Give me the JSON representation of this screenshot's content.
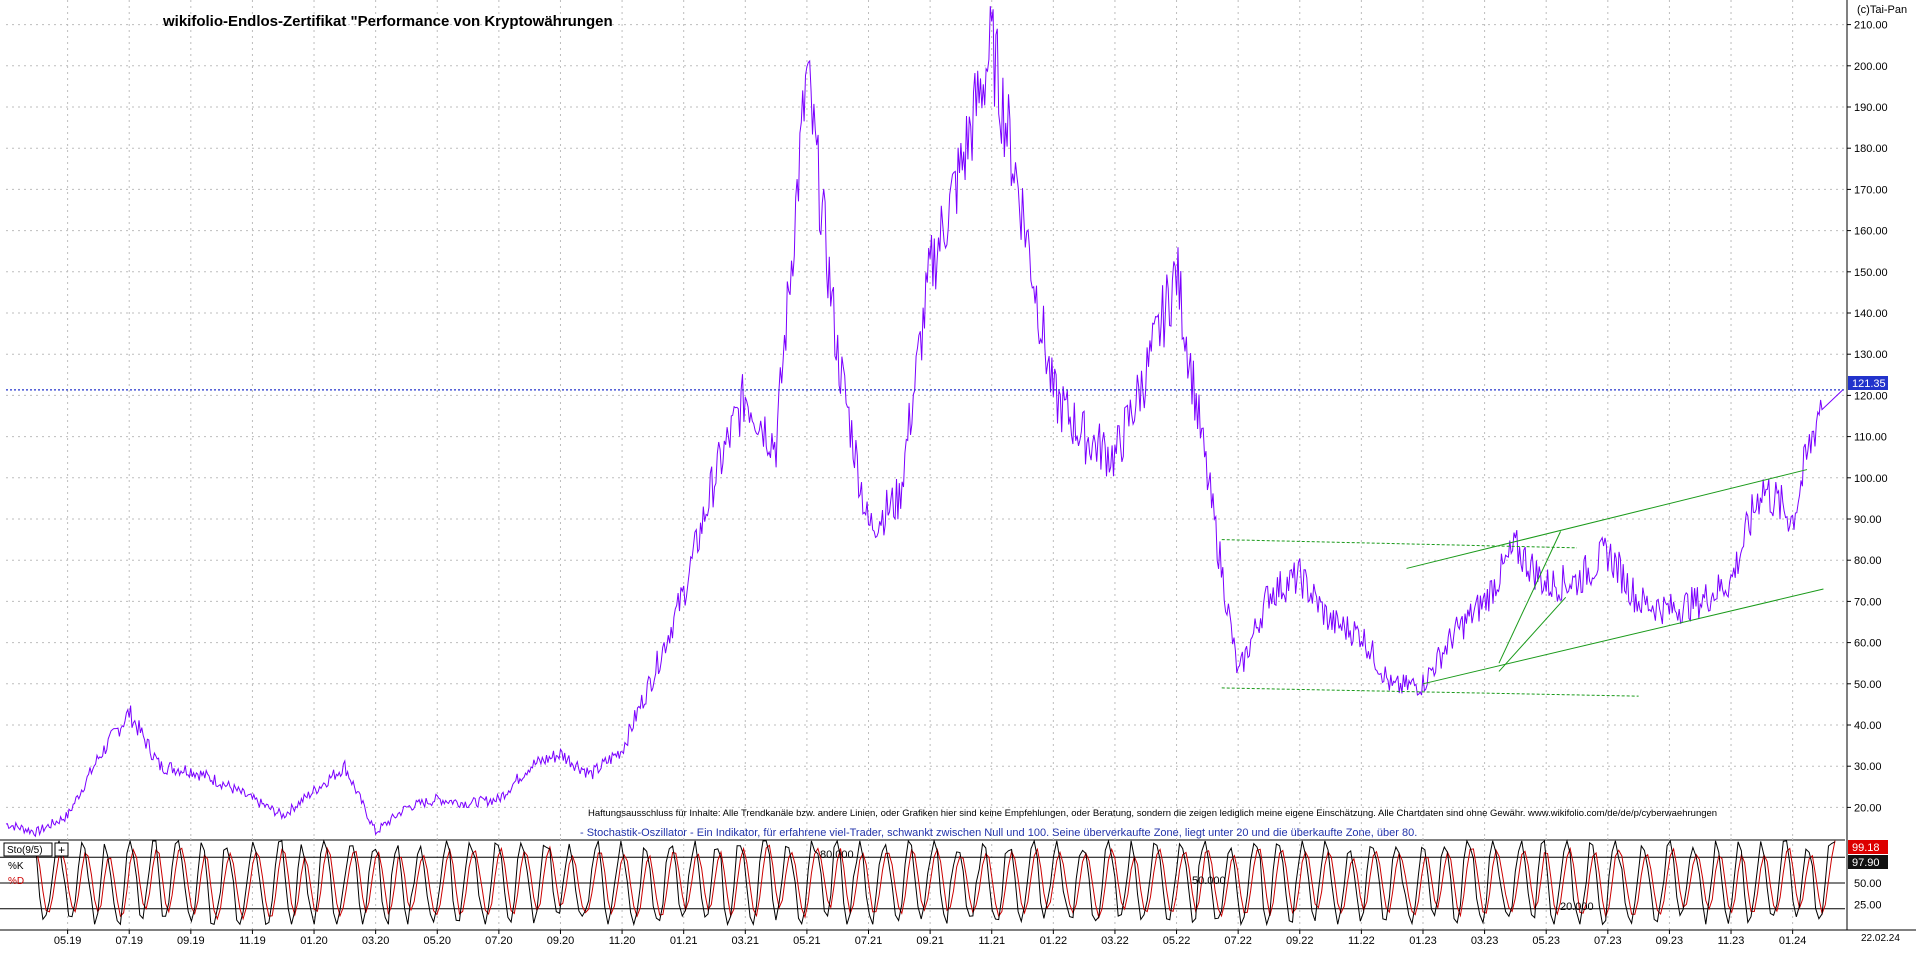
{
  "chart_data": [
    {
      "type": "line",
      "title": "wikifolio-Endlos-Zertifikat \"Performance von Kryptowährungen",
      "copyright": "(c)Tai-Pan",
      "xlabel": "",
      "ylabel": "",
      "ylim": [
        15,
        215
      ],
      "x_ticks": [
        "05.19",
        "07.19",
        "09.19",
        "11.19",
        "01.20",
        "03.20",
        "05.20",
        "07.20",
        "09.20",
        "11.20",
        "01.21",
        "03.21",
        "05.21",
        "07.21",
        "09.21",
        "11.21",
        "01.22",
        "03.22",
        "05.22",
        "07.22",
        "09.22",
        "11.22",
        "01.23",
        "03.23",
        "05.23",
        "07.23",
        "09.23",
        "11.23",
        "01.24"
      ],
      "date_axis_end": "22.02.24",
      "y_ticks": [
        "20.00",
        "30.00",
        "40.00",
        "50.00",
        "60.00",
        "70.00",
        "80.00",
        "90.00",
        "100.00",
        "110.00",
        "120.00",
        "130.00",
        "140.00",
        "150.00",
        "160.00",
        "170.00",
        "180.00",
        "190.00",
        "200.00",
        "210.00"
      ],
      "last_value": 121.35,
      "last_value_label": "121.35",
      "grid": true,
      "line_color": "#7b00ff",
      "series": [
        {
          "name": "",
          "x": [
            "2019-03",
            "2019-04",
            "2019-05",
            "2019-06",
            "2019-07",
            "2019-08",
            "2019-09",
            "2019-10",
            "2019-11",
            "2019-12",
            "2020-01",
            "2020-02",
            "2020-03",
            "2020-04",
            "2020-05",
            "2020-06",
            "2020-07",
            "2020-08",
            "2020-09",
            "2020-10",
            "2020-11",
            "2020-12",
            "2021-01",
            "2021-02",
            "2021-03",
            "2021-04",
            "2021-05",
            "2021-06",
            "2021-07",
            "2021-08",
            "2021-09",
            "2021-10",
            "2021-11",
            "2021-12",
            "2022-01",
            "2022-02",
            "2022-03",
            "2022-04",
            "2022-05",
            "2022-06",
            "2022-07",
            "2022-08",
            "2022-09",
            "2022-10",
            "2022-11",
            "2022-12",
            "2023-01",
            "2023-02",
            "2023-03",
            "2023-04",
            "2023-05",
            "2023-06",
            "2023-07",
            "2023-08",
            "2023-09",
            "2023-10",
            "2023-11",
            "2023-12",
            "2024-01",
            "2024-02"
          ],
          "y": [
            16,
            14,
            18,
            32,
            43,
            30,
            29,
            26,
            22,
            18,
            24,
            30,
            14,
            20,
            22,
            21,
            22,
            30,
            33,
            28,
            34,
            52,
            72,
            100,
            120,
            108,
            198,
            130,
            88,
            95,
            150,
            175,
            205,
            165,
            120,
            110,
            105,
            125,
            150,
            100,
            52,
            72,
            76,
            65,
            62,
            49,
            50,
            62,
            70,
            83,
            74,
            75,
            82,
            70,
            68,
            70,
            75,
            98,
            90,
            121.35
          ]
        }
      ],
      "trend_lines": [
        {
          "style": "dashed",
          "from": [
            "2022-06-15",
            85
          ],
          "to": [
            "2023-06-01",
            83
          ]
        },
        {
          "style": "dashed",
          "from": [
            "2022-06-15",
            49
          ],
          "to": [
            "2023-08-01",
            47
          ]
        },
        {
          "style": "solid",
          "from": [
            "2023-01-01",
            50
          ],
          "to": [
            "2024-02-01",
            73
          ]
        },
        {
          "style": "solid",
          "from": [
            "2022-12-15",
            78
          ],
          "to": [
            "2024-01-15",
            102
          ]
        },
        {
          "style": "solid",
          "from": [
            "2023-03-15",
            55
          ],
          "to": [
            "2023-05-15",
            87
          ]
        },
        {
          "style": "solid",
          "from": [
            "2023-03-15",
            53
          ],
          "to": [
            "2023-05-20",
            71
          ]
        }
      ],
      "disclaimer": "Haftungsausschluss für Inhalte: Alle Trendkanäle bzw. andere Linien, oder Grafiken hier sind keine Empfehlungen, oder Beratung, sondern die zeigen lediglich meine eigene Einschätzung. Alle Chartdaten sind ohne Gewähr.  www.wikifolio.com/de/de/p/cyberwaehrungen",
      "indicator_note": "- Stochastik-Oszillator - Ein Indikator, für erfahrene viel-Trader, schwankt zwischen Null und 100. Seine überverkaufte Zone, liegt unter 20 und die überkaufte Zone, über 80."
    },
    {
      "type": "line",
      "title": "",
      "indicator_label": "Sto(9/5)",
      "ylim": [
        0,
        100
      ],
      "y_ticks": [
        "25.00",
        "50.00",
        "75.00"
      ],
      "level_labels": {
        "upper": "80.000",
        "middle": "50.000",
        "lower": "20.000"
      },
      "levels": [
        80,
        50,
        20
      ],
      "series": [
        {
          "name": "%K",
          "color": "#000000",
          "current_label": "97.90",
          "cycles": 74,
          "seed": 3
        },
        {
          "name": "%D",
          "color": "#cc0000",
          "current_label": "99.18",
          "cycles": 74,
          "seed": 3
        }
      ]
    }
  ]
}
